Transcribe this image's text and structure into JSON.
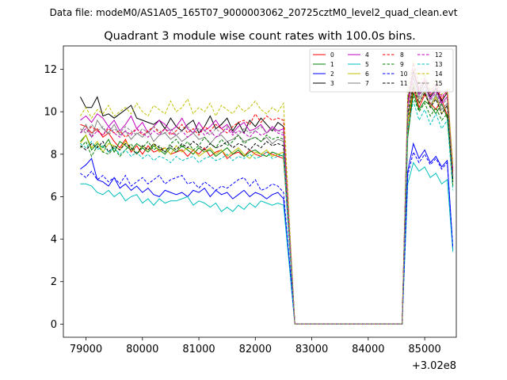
{
  "figure": {
    "suptitle": "Data file: modeM0/AS1A05_165T07_9000003062_20725cztM0_level2_quad_clean.evt",
    "title": "Quadrant 3 module wise count rates with 100.0s bins.",
    "x_offset_label": "+3.02e8"
  },
  "chart_data": {
    "type": "line",
    "title": "Quadrant 3 module wise count rates with 100.0s bins.",
    "xlabel": "",
    "ylabel": "",
    "x_offset": 302000000,
    "xlim": [
      78600,
      85560
    ],
    "ylim": [
      -0.62,
      13.1
    ],
    "grid": false,
    "legend_position": "top-right",
    "xticks": [
      79000,
      80000,
      81000,
      82000,
      83000,
      84000,
      85000
    ],
    "xtick_labels": [
      "79000",
      "80000",
      "81000",
      "82000",
      "83000",
      "84000",
      "85000"
    ],
    "yticks": [
      0,
      2,
      4,
      6,
      8,
      10,
      12
    ],
    "ytick_labels": [
      "0",
      "2",
      "4",
      "6",
      "8",
      "10",
      "12"
    ],
    "x": [
      78900,
      79000,
      79100,
      79200,
      79300,
      79400,
      79500,
      79600,
      79700,
      79800,
      79900,
      80000,
      80100,
      80200,
      80300,
      80400,
      80500,
      80600,
      80700,
      80800,
      80900,
      81000,
      81100,
      81200,
      81300,
      81400,
      81500,
      81600,
      81700,
      81800,
      81900,
      82000,
      82100,
      82200,
      82300,
      82400,
      82500,
      82600,
      82700,
      82800,
      82900,
      83000,
      83100,
      83200,
      83300,
      83400,
      83500,
      83600,
      83700,
      83800,
      83900,
      84000,
      84100,
      84200,
      84300,
      84400,
      84500,
      84600,
      84700,
      84800,
      84900,
      85000,
      85100,
      85200,
      85300,
      85400,
      85500
    ],
    "series": [
      {
        "name": "0",
        "color": "#ff0000",
        "dash": false,
        "values": [
          9.4,
          9.3,
          9.0,
          9.2,
          8.8,
          9.0,
          8.6,
          8.3,
          8.7,
          8.1,
          8.4,
          8.0,
          8.4,
          8.1,
          8.2,
          8.3,
          8.0,
          8.1,
          8.2,
          7.9,
          8.2,
          8.0,
          8.3,
          7.9,
          8.1,
          8.2,
          7.8,
          8.0,
          8.1,
          7.9,
          8.2,
          8.0,
          7.9,
          8.1,
          8.0,
          7.9,
          7.8,
          4.0,
          0,
          0,
          0,
          0,
          0,
          0,
          0,
          0,
          0,
          0,
          0,
          0,
          0,
          0,
          0,
          0,
          0,
          0,
          0,
          0,
          9.0,
          11.1,
          10.2,
          10.8,
          10.4,
          10.1,
          10.6,
          9.8,
          7.0
        ]
      },
      {
        "name": "1",
        "color": "#008000",
        "dash": false,
        "values": [
          8.6,
          8.9,
          8.2,
          8.5,
          8.3,
          8.7,
          8.1,
          8.6,
          8.4,
          8.2,
          8.5,
          8.3,
          8.1,
          8.4,
          8.2,
          8.0,
          8.3,
          8.1,
          8.4,
          8.2,
          8.0,
          8.3,
          8.1,
          8.2,
          7.9,
          8.1,
          8.3,
          8.0,
          8.2,
          7.9,
          8.1,
          8.2,
          8.0,
          7.9,
          8.1,
          8.0,
          7.9,
          4.0,
          0,
          0,
          0,
          0,
          0,
          0,
          0,
          0,
          0,
          0,
          0,
          0,
          0,
          0,
          0,
          0,
          0,
          0,
          0,
          0,
          8.8,
          10.9,
          10.1,
          10.5,
          10.3,
          9.9,
          10.4,
          9.7,
          6.8
        ]
      },
      {
        "name": "2",
        "color": "#0000ff",
        "dash": false,
        "values": [
          7.3,
          7.5,
          7.8,
          6.8,
          6.7,
          6.5,
          6.9,
          6.4,
          6.6,
          6.3,
          6.5,
          6.2,
          6.4,
          6.1,
          6.0,
          6.3,
          6.2,
          6.1,
          6.2,
          6.0,
          6.3,
          6.2,
          6.4,
          6.0,
          6.3,
          6.1,
          6.2,
          5.9,
          6.1,
          6.3,
          6.0,
          6.2,
          6.1,
          5.9,
          6.1,
          6.2,
          5.9,
          3.0,
          0,
          0,
          0,
          0,
          0,
          0,
          0,
          0,
          0,
          0,
          0,
          0,
          0,
          0,
          0,
          0,
          0,
          0,
          0,
          0,
          7.2,
          8.5,
          7.8,
          8.2,
          7.6,
          7.9,
          7.4,
          7.7,
          3.5
        ]
      },
      {
        "name": "3",
        "color": "#000000",
        "dash": false,
        "values": [
          10.7,
          10.2,
          10.2,
          10.7,
          9.8,
          9.9,
          9.7,
          9.9,
          10.1,
          10.3,
          9.7,
          9.6,
          9.5,
          9.4,
          9.6,
          9.2,
          9.7,
          9.3,
          9.1,
          9.4,
          9.6,
          9.0,
          9.3,
          9.8,
          9.2,
          9.4,
          9.7,
          9.1,
          9.5,
          9.0,
          9.6,
          9.3,
          9.7,
          9.4,
          9.1,
          9.5,
          9.3,
          4.5,
          0,
          0,
          0,
          0,
          0,
          0,
          0,
          0,
          0,
          0,
          0,
          0,
          0,
          0,
          0,
          0,
          0,
          0,
          0,
          0,
          10.6,
          11.9,
          10.9,
          11.4,
          10.7,
          11.1,
          10.5,
          10.9,
          7.2
        ]
      },
      {
        "name": "4",
        "color": "#c000c0",
        "dash": false,
        "values": [
          9.6,
          9.8,
          9.5,
          9.9,
          9.7,
          9.3,
          9.6,
          9.1,
          9.4,
          9.8,
          9.2,
          9.5,
          9.0,
          9.3,
          9.6,
          9.4,
          9.1,
          9.3,
          9.7,
          9.2,
          9.0,
          9.5,
          9.1,
          9.3,
          9.6,
          9.2,
          9.4,
          9.0,
          9.3,
          9.5,
          9.1,
          9.2,
          9.4,
          9.0,
          9.3,
          9.1,
          9.2,
          4.6,
          0,
          0,
          0,
          0,
          0,
          0,
          0,
          0,
          0,
          0,
          0,
          0,
          0,
          0,
          0,
          0,
          0,
          0,
          0,
          0,
          10.3,
          11.6,
          10.8,
          11.2,
          10.6,
          11.0,
          10.4,
          10.7,
          7.0
        ]
      },
      {
        "name": "5",
        "color": "#00bfbf",
        "dash": false,
        "values": [
          6.6,
          6.6,
          6.5,
          6.2,
          6.1,
          6.3,
          6.0,
          6.2,
          5.8,
          6.0,
          6.1,
          5.7,
          5.9,
          5.6,
          5.9,
          5.7,
          5.8,
          5.8,
          5.9,
          6.0,
          5.6,
          5.8,
          5.7,
          5.5,
          5.7,
          5.3,
          5.5,
          5.3,
          5.6,
          5.4,
          5.7,
          5.5,
          5.8,
          5.7,
          5.6,
          5.7,
          5.6,
          2.8,
          0,
          0,
          0,
          0,
          0,
          0,
          0,
          0,
          0,
          0,
          0,
          0,
          0,
          0,
          0,
          0,
          0,
          0,
          0,
          0,
          6.6,
          7.6,
          7.2,
          7.4,
          6.9,
          7.1,
          6.6,
          6.8,
          3.4
        ]
      },
      {
        "name": "6",
        "color": "#bfbf00",
        "dash": false,
        "values": [
          8.5,
          8.9,
          8.3,
          8.6,
          8.1,
          8.5,
          8.4,
          8.2,
          8.6,
          8.3,
          8.0,
          8.4,
          8.2,
          8.5,
          8.1,
          8.3,
          8.0,
          8.4,
          8.1,
          8.3,
          8.2,
          7.9,
          8.1,
          8.3,
          8.0,
          8.2,
          7.9,
          8.1,
          8.3,
          8.0,
          7.8,
          8.1,
          8.0,
          8.2,
          7.9,
          8.0,
          8.1,
          4.0,
          0,
          0,
          0,
          0,
          0,
          0,
          0,
          0,
          0,
          0,
          0,
          0,
          0,
          0,
          0,
          0,
          0,
          0,
          0,
          0,
          9.4,
          11.3,
          10.4,
          10.9,
          10.2,
          10.7,
          9.9,
          10.3,
          6.6
        ]
      },
      {
        "name": "7",
        "color": "#808080",
        "dash": false,
        "values": [
          9.0,
          9.4,
          8.8,
          9.6,
          9.2,
          9.0,
          9.4,
          8.9,
          9.1,
          8.7,
          9.0,
          8.8,
          9.1,
          8.6,
          8.9,
          9.0,
          8.7,
          8.9,
          8.6,
          8.8,
          9.0,
          8.7,
          8.8,
          8.5,
          8.8,
          8.9,
          8.6,
          8.7,
          8.9,
          8.6,
          8.7,
          8.8,
          8.6,
          8.8,
          8.5,
          8.7,
          8.6,
          4.3,
          0,
          0,
          0,
          0,
          0,
          0,
          0,
          0,
          0,
          0,
          0,
          0,
          0,
          0,
          0,
          0,
          0,
          0,
          0,
          0,
          9.8,
          11.4,
          10.6,
          11.0,
          10.3,
          10.8,
          10.1,
          10.4,
          6.9
        ]
      },
      {
        "name": "8",
        "color": "#ff0000",
        "dash": true,
        "values": [
          9.2,
          9.0,
          9.3,
          9.1,
          8.9,
          9.2,
          9.0,
          9.1,
          8.8,
          9.0,
          9.2,
          8.9,
          9.1,
          9.3,
          9.0,
          9.2,
          8.9,
          9.1,
          9.4,
          9.0,
          9.2,
          8.9,
          9.3,
          9.1,
          9.4,
          9.2,
          9.0,
          9.3,
          9.5,
          9.6,
          9.4,
          9.9,
          9.5,
          9.8,
          9.6,
          9.7,
          9.6,
          4.8,
          0,
          0,
          0,
          0,
          0,
          0,
          0,
          0,
          0,
          0,
          0,
          0,
          0,
          0,
          0,
          0,
          0,
          0,
          0,
          0,
          10.2,
          12.0,
          11.0,
          11.5,
          10.8,
          11.2,
          10.6,
          11.0,
          7.1
        ]
      },
      {
        "name": "9",
        "color": "#008000",
        "dash": true,
        "values": [
          8.3,
          8.6,
          7.9,
          8.4,
          8.1,
          8.0,
          8.3,
          7.9,
          8.2,
          8.5,
          8.0,
          8.3,
          8.6,
          8.2,
          8.4,
          8.1,
          8.5,
          8.7,
          8.3,
          8.6,
          8.2,
          8.4,
          8.8,
          8.5,
          8.3,
          8.7,
          8.4,
          8.6,
          8.9,
          8.5,
          8.7,
          8.8,
          8.6,
          8.9,
          8.7,
          8.8,
          8.7,
          4.3,
          0,
          0,
          0,
          0,
          0,
          0,
          0,
          0,
          0,
          0,
          0,
          0,
          0,
          0,
          0,
          0,
          0,
          0,
          0,
          0,
          9.7,
          10.7,
          10.0,
          10.4,
          9.8,
          10.2,
          9.6,
          9.9,
          6.5
        ]
      },
      {
        "name": "10",
        "color": "#0000ff",
        "dash": true,
        "values": [
          7.1,
          6.9,
          7.2,
          6.8,
          7.0,
          6.7,
          6.9,
          6.6,
          7.0,
          6.5,
          6.7,
          6.9,
          6.6,
          6.8,
          7.0,
          6.6,
          6.8,
          6.9,
          7.0,
          6.6,
          6.7,
          6.4,
          6.7,
          6.5,
          6.3,
          6.5,
          6.4,
          6.6,
          6.8,
          6.9,
          6.5,
          6.8,
          6.3,
          6.4,
          6.6,
          6.5,
          6.2,
          3.1,
          0,
          0,
          0,
          0,
          0,
          0,
          0,
          0,
          0,
          0,
          0,
          0,
          0,
          0,
          0,
          0,
          0,
          0,
          0,
          0,
          7.0,
          8.1,
          7.6,
          8.0,
          7.5,
          7.8,
          7.3,
          7.6,
          3.6
        ]
      },
      {
        "name": "11",
        "color": "#000000",
        "dash": true,
        "values": [
          8.4,
          8.2,
          8.5,
          8.3,
          8.6,
          8.1,
          8.4,
          8.2,
          8.5,
          8.3,
          8.0,
          8.4,
          8.2,
          8.5,
          8.3,
          8.1,
          8.4,
          8.2,
          8.5,
          8.3,
          8.6,
          8.4,
          8.2,
          8.5,
          8.3,
          8.4,
          8.6,
          8.3,
          8.5,
          8.4,
          8.2,
          8.5,
          8.3,
          8.6,
          8.4,
          8.5,
          8.4,
          4.2,
          0,
          0,
          0,
          0,
          0,
          0,
          0,
          0,
          0,
          0,
          0,
          0,
          0,
          0,
          0,
          0,
          0,
          0,
          0,
          0,
          9.9,
          11.2,
          10.4,
          10.9,
          10.2,
          10.6,
          9.9,
          10.3,
          6.7
        ]
      },
      {
        "name": "12",
        "color": "#c000c0",
        "dash": true,
        "values": [
          9.0,
          9.2,
          8.8,
          9.1,
          8.9,
          9.3,
          9.0,
          8.8,
          9.1,
          8.9,
          9.2,
          9.0,
          8.8,
          9.1,
          8.9,
          9.2,
          9.0,
          8.9,
          9.1,
          8.8,
          9.0,
          9.2,
          8.9,
          9.1,
          8.8,
          9.0,
          9.2,
          8.9,
          9.1,
          9.0,
          8.8,
          9.1,
          8.9,
          9.0,
          9.2,
          9.0,
          8.9,
          4.4,
          0,
          0,
          0,
          0,
          0,
          0,
          0,
          0,
          0,
          0,
          0,
          0,
          0,
          0,
          0,
          0,
          0,
          0,
          0,
          0,
          10.4,
          12.3,
          11.1,
          11.6,
          10.9,
          11.3,
          10.7,
          11.0,
          7.3
        ]
      },
      {
        "name": "13",
        "color": "#00bfbf",
        "dash": true,
        "values": [
          8.5,
          8.3,
          8.6,
          8.2,
          8.4,
          8.1,
          8.3,
          8.0,
          8.2,
          7.9,
          8.1,
          7.8,
          8.0,
          7.7,
          7.9,
          7.8,
          7.6,
          7.9,
          7.7,
          7.8,
          7.9,
          7.6,
          7.8,
          7.9,
          7.7,
          7.8,
          8.0,
          7.7,
          7.9,
          7.8,
          8.0,
          7.8,
          7.9,
          8.1,
          7.8,
          7.9,
          8.0,
          3.9,
          0,
          0,
          0,
          0,
          0,
          0,
          0,
          0,
          0,
          0,
          0,
          0,
          0,
          0,
          0,
          0,
          0,
          0,
          0,
          0,
          9.2,
          10.5,
          9.6,
          10.1,
          9.4,
          9.9,
          9.2,
          9.6,
          6.3
        ]
      },
      {
        "name": "14",
        "color": "#bfbf00",
        "dash": true,
        "values": [
          9.8,
          10.2,
          9.7,
          10.1,
          9.9,
          10.3,
          9.8,
          10.0,
          10.2,
          9.9,
          10.4,
          10.0,
          9.8,
          10.3,
          10.1,
          9.9,
          10.5,
          10.0,
          10.2,
          10.6,
          9.9,
          10.2,
          10.0,
          10.4,
          9.8,
          10.3,
          10.1,
          9.9,
          10.3,
          10.0,
          10.2,
          10.5,
          10.1,
          9.9,
          10.2,
          10.0,
          10.4,
          5.0,
          0,
          0,
          0,
          0,
          0,
          0,
          0,
          0,
          0,
          0,
          0,
          0,
          0,
          0,
          0,
          0,
          0,
          0,
          0,
          0,
          10.9,
          12.4,
          11.3,
          11.8,
          11.0,
          11.5,
          10.8,
          11.1,
          7.5
        ]
      },
      {
        "name": "15",
        "color": "#808080",
        "dash": true,
        "values": [
          9.2,
          9.0,
          9.4,
          9.1,
          9.3,
          8.9,
          9.2,
          9.0,
          9.3,
          9.1,
          8.9,
          9.2,
          9.0,
          9.3,
          9.1,
          9.0,
          9.2,
          8.9,
          9.1,
          9.3,
          9.0,
          9.2,
          9.1,
          8.9,
          9.2,
          9.0,
          9.3,
          9.1,
          8.9,
          9.2,
          9.0,
          9.1,
          9.3,
          9.0,
          9.2,
          9.1,
          9.0,
          4.5,
          0,
          0,
          0,
          0,
          0,
          0,
          0,
          0,
          0,
          0,
          0,
          0,
          0,
          0,
          0,
          0,
          0,
          0,
          0,
          0,
          10.1,
          11.7,
          10.7,
          11.2,
          10.5,
          10.9,
          10.3,
          10.6,
          7.0
        ]
      }
    ]
  }
}
